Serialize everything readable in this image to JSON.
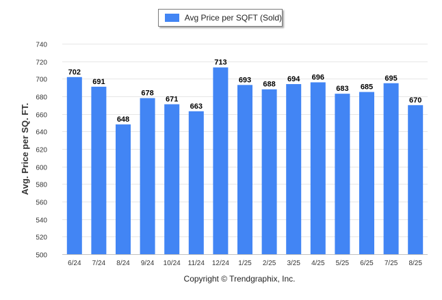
{
  "chart_data": {
    "type": "bar",
    "ylabel": "Avg. Price per SQ. FT.",
    "categories": [
      "6/24",
      "7/24",
      "8/24",
      "9/24",
      "10/24",
      "11/24",
      "12/24",
      "1/25",
      "2/25",
      "3/25",
      "4/25",
      "5/25",
      "6/25",
      "7/25",
      "8/25"
    ],
    "series": [
      {
        "name": "Avg Price per SQFT (Sold)",
        "values": [
          702,
          691,
          648,
          678,
          671,
          663,
          713,
          693,
          688,
          694,
          696,
          683,
          685,
          695,
          670
        ]
      }
    ],
    "ylim": [
      500,
      740
    ],
    "yticks": [
      500,
      520,
      540,
      560,
      580,
      600,
      620,
      640,
      660,
      680,
      700,
      720,
      740
    ],
    "grid": true,
    "legend": "top-center",
    "bar_color": "#4285f4"
  },
  "footer": {
    "copyright": "Copyright © Trendgraphix, Inc."
  }
}
